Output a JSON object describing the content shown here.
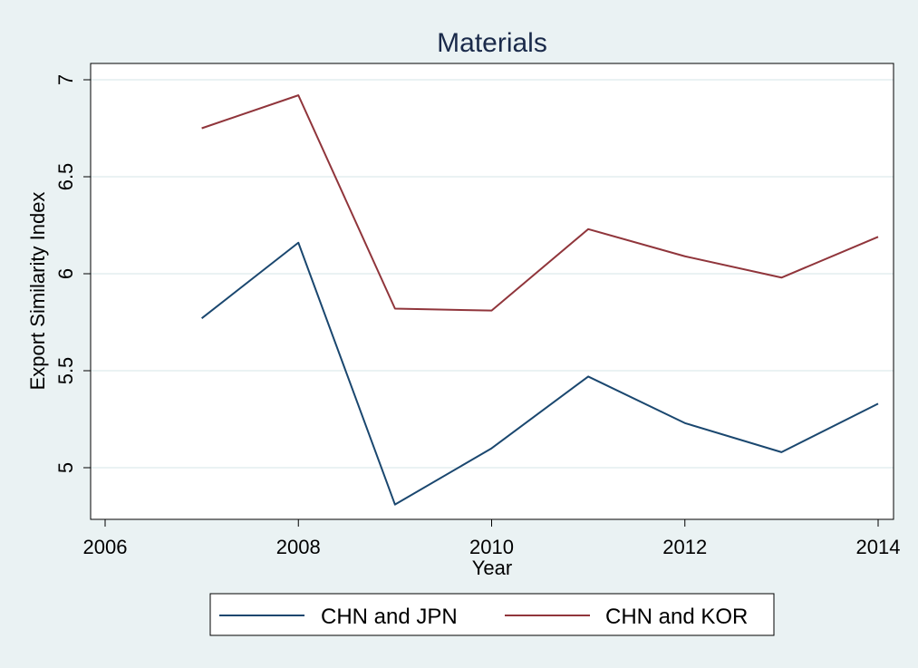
{
  "chart_data": {
    "type": "line",
    "title": "Materials",
    "xlabel": "Year",
    "ylabel": "Export Similarity Index",
    "xlim": [
      2006,
      2014
    ],
    "ylim": [
      4.8,
      7
    ],
    "x_ticks": [
      "2006",
      "2008",
      "2010",
      "2012",
      "2014"
    ],
    "y_ticks": [
      "5",
      "5.5",
      "6",
      "6.5",
      "7"
    ],
    "grid": true,
    "legend_position": "bottom",
    "x": [
      2007,
      2008,
      2009,
      2010,
      2011,
      2012,
      2013,
      2014
    ],
    "series": [
      {
        "name": "CHN and JPN",
        "color": "#1a476f",
        "values": [
          5.77,
          6.16,
          4.81,
          5.1,
          5.47,
          5.23,
          5.08,
          5.33
        ]
      },
      {
        "name": "CHN and KOR",
        "color": "#90353b",
        "values": [
          6.75,
          6.92,
          5.82,
          5.81,
          6.23,
          6.09,
          5.98,
          6.19
        ]
      }
    ]
  }
}
